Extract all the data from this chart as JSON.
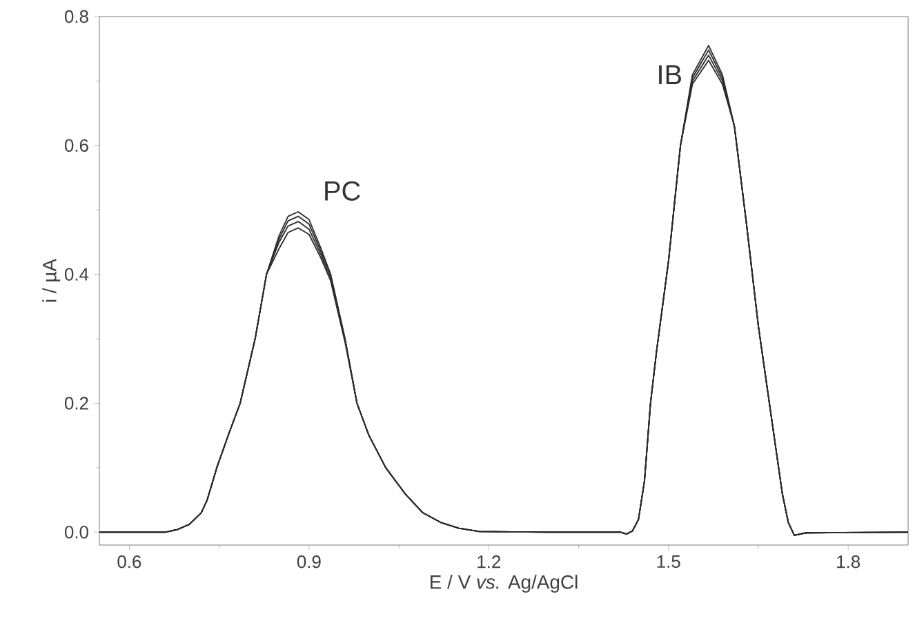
{
  "chart_data": {
    "type": "line",
    "xlabel": "E / V *vs.* Ag/AgCl",
    "ylabel": "i / µA",
    "x": [
      0.55,
      0.66,
      0.68,
      0.7,
      0.72,
      0.73,
      0.746,
      0.765,
      0.785,
      0.81,
      0.829,
      0.85,
      0.865,
      0.882,
      0.9,
      0.92,
      0.936,
      0.96,
      0.98,
      1.0,
      1.028,
      1.06,
      1.09,
      1.12,
      1.15,
      1.184,
      1.3,
      1.42,
      1.43,
      1.44,
      1.45,
      1.46,
      1.47,
      1.48,
      1.5,
      1.52,
      1.54,
      1.567,
      1.59,
      1.61,
      1.63,
      1.65,
      1.67,
      1.69,
      1.7,
      1.71,
      1.73,
      1.9
    ],
    "series": [
      {
        "color": "#2b2b2b",
        "values": [
          0,
          0,
          0.004,
          0.012,
          0.03,
          0.05,
          0.1,
          0.15,
          0.2,
          0.3,
          0.4,
          0.46,
          0.49,
          0.497,
          0.485,
          0.44,
          0.4,
          0.3,
          0.2,
          0.15,
          0.1,
          0.06,
          0.03,
          0.015,
          0.006,
          0.001,
          0,
          0,
          -0.003,
          0.002,
          0.02,
          0.08,
          0.2,
          0.28,
          0.42,
          0.6,
          0.71,
          0.755,
          0.71,
          0.63,
          0.48,
          0.32,
          0.19,
          0.06,
          0.015,
          -0.005,
          -0.001,
          0
        ]
      },
      {
        "color": "#2b2b2b",
        "values": [
          0,
          0,
          0.004,
          0.012,
          0.03,
          0.05,
          0.1,
          0.15,
          0.2,
          0.3,
          0.4,
          0.455,
          0.483,
          0.49,
          0.478,
          0.435,
          0.4,
          0.3,
          0.2,
          0.15,
          0.1,
          0.06,
          0.03,
          0.015,
          0.006,
          0.001,
          0,
          0,
          -0.003,
          0.002,
          0.02,
          0.08,
          0.2,
          0.28,
          0.42,
          0.6,
          0.705,
          0.748,
          0.705,
          0.63,
          0.48,
          0.32,
          0.19,
          0.06,
          0.015,
          -0.005,
          -0.001,
          0
        ]
      },
      {
        "color": "#2b2b2b",
        "values": [
          0,
          0,
          0.004,
          0.012,
          0.03,
          0.05,
          0.1,
          0.15,
          0.2,
          0.3,
          0.4,
          0.45,
          0.475,
          0.482,
          0.47,
          0.43,
          0.395,
          0.3,
          0.2,
          0.15,
          0.1,
          0.06,
          0.03,
          0.015,
          0.006,
          0.001,
          0,
          0,
          -0.003,
          0.002,
          0.02,
          0.08,
          0.2,
          0.28,
          0.42,
          0.6,
          0.7,
          0.74,
          0.7,
          0.63,
          0.48,
          0.32,
          0.19,
          0.06,
          0.015,
          -0.005,
          -0.001,
          0
        ]
      },
      {
        "color": "#2b2b2b",
        "values": [
          0,
          0,
          0.004,
          0.012,
          0.03,
          0.05,
          0.1,
          0.15,
          0.2,
          0.3,
          0.4,
          0.44,
          0.465,
          0.472,
          0.462,
          0.425,
          0.39,
          0.295,
          0.2,
          0.15,
          0.1,
          0.06,
          0.03,
          0.015,
          0.006,
          0.001,
          0,
          0,
          -0.003,
          0.002,
          0.02,
          0.08,
          0.2,
          0.28,
          0.42,
          0.6,
          0.695,
          0.732,
          0.695,
          0.63,
          0.48,
          0.32,
          0.19,
          0.06,
          0.015,
          -0.005,
          -0.001,
          0
        ]
      }
    ],
    "xlim": [
      0.55,
      1.9
    ],
    "ylim": [
      -0.02,
      0.8
    ],
    "xticks": [
      0.6,
      0.9,
      1.2,
      1.5,
      1.8
    ],
    "yticks": [
      {
        "value": 0,
        "label": "0.0"
      },
      {
        "value": 0.2,
        "label": "0.2"
      },
      {
        "value": 0.4,
        "label": "0.4"
      },
      {
        "value": 0.6,
        "label": "0.6"
      },
      {
        "value": 0.8,
        "label": "0.8"
      }
    ],
    "annotations": [
      "PC",
      "IB"
    ],
    "marker": "none",
    "line_style": "solid"
  }
}
